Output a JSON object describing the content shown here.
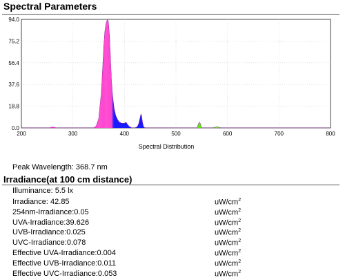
{
  "section_title": "Spectral Parameters",
  "peak_wavelength": "Peak Wavelength: 368.7 nm",
  "irradiance_title": "Irradiance(at 100 cm distance)",
  "illuminance": "Illuminance: 5.5 lx",
  "measurements": [
    {
      "label": "Irradiance: 42.85",
      "unit": "uW/cm",
      "sup": "2"
    },
    {
      "label": "254nm-Irradiance:0.05",
      "unit": "uW/cm",
      "sup": "2"
    },
    {
      "label": "UVA-Irradiance:39.626",
      "unit": "uW/cm",
      "sup": "2"
    },
    {
      "label": "UVB-Irradiance:0.025",
      "unit": "uW/cm",
      "sup": "2"
    },
    {
      "label": "UVC-Irradiance:0.078",
      "unit": "uW/cm",
      "sup": "2"
    },
    {
      "label": "Effective UVA-Irradiance:0.004",
      "unit": "uW/cm",
      "sup": "2"
    },
    {
      "label": "Effective UVB-Irradiance:0.011",
      "unit": "uW/cm",
      "sup": "2"
    },
    {
      "label": "Effective UVC-Irradiance:0.053",
      "unit": "uW/cm",
      "sup": "2"
    }
  ],
  "chart_data": {
    "type": "area",
    "title": "",
    "xlabel": "Spectral Distribution",
    "ylabel": "",
    "xlim": [
      200,
      800
    ],
    "ylim": [
      0,
      94
    ],
    "x_ticks": [
      "200",
      "300",
      "400",
      "500",
      "600",
      "700",
      "800"
    ],
    "y_ticks": [
      "0.0",
      "18.8",
      "37.6",
      "56.4",
      "75.2",
      "94.0"
    ],
    "grid": true,
    "legend": "none",
    "colors": {
      "uv_peak": "#ff33cc",
      "violet_blue": "#1a1aff",
      "green": "#66dd22",
      "yellow": "#ffcc00"
    },
    "x": [
      200,
      255,
      258,
      262,
      268,
      340,
      345,
      350,
      355,
      358,
      360,
      362,
      364,
      366,
      368,
      369,
      371,
      373,
      375,
      377,
      380,
      383,
      387,
      390,
      395,
      400,
      403,
      406,
      410,
      415,
      420,
      425,
      428,
      430,
      432,
      433,
      435,
      437,
      440,
      445,
      500,
      540,
      542,
      544,
      546,
      548,
      550,
      570,
      576,
      580,
      584,
      590,
      800
    ],
    "values": [
      0,
      0,
      0.6,
      0.8,
      0,
      0,
      1.5,
      8,
      30,
      55,
      72,
      84,
      90,
      93,
      94,
      91,
      80,
      60,
      40,
      28,
      17,
      11,
      7,
      5,
      4,
      4,
      5,
      3,
      1,
      0,
      0,
      1,
      4,
      8,
      12,
      11,
      5,
      1,
      0,
      0,
      0,
      0,
      1.5,
      4,
      5,
      3,
      0,
      0,
      0.6,
      1,
      0.4,
      0,
      0
    ]
  }
}
